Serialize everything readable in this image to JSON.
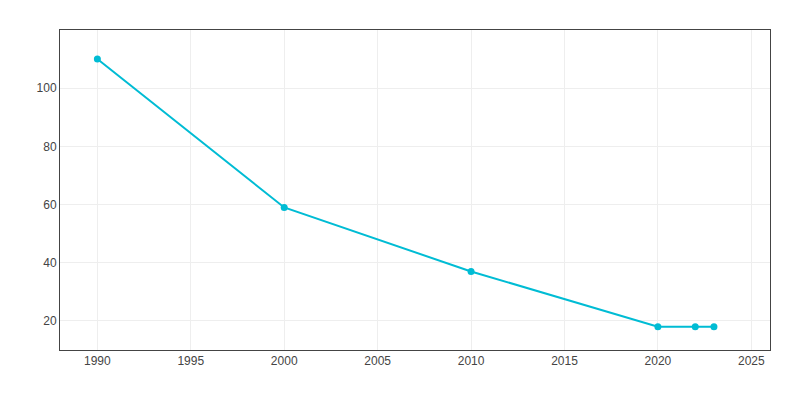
{
  "chart_data": {
    "type": "line",
    "x": [
      1990,
      2000,
      2010,
      2020,
      2022,
      2023
    ],
    "values": [
      110,
      59,
      37,
      18,
      18,
      18
    ],
    "color": "#00bcd4",
    "marker": "circle",
    "xlim": [
      1988,
      2026
    ],
    "ylim": [
      10,
      120
    ],
    "xticks": [
      1990,
      1995,
      2000,
      2005,
      2010,
      2015,
      2020,
      2025
    ],
    "yticks": [
      20,
      40,
      60,
      80,
      100
    ],
    "grid": true
  }
}
